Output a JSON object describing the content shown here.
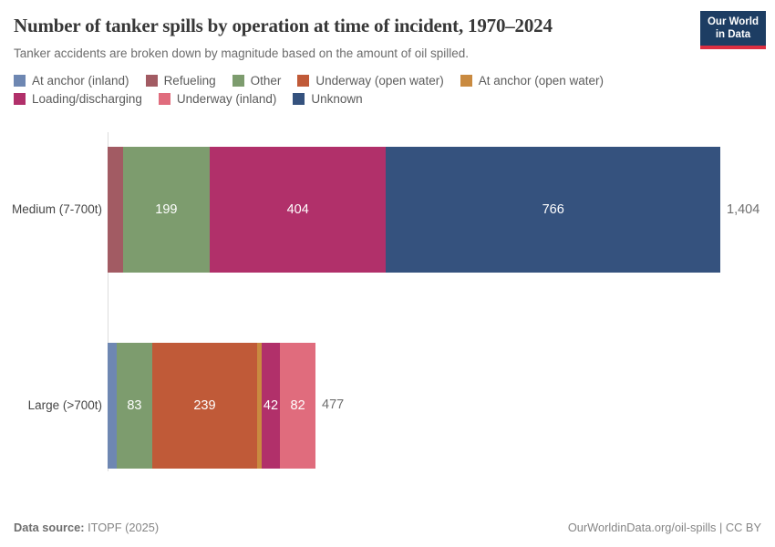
{
  "header": {
    "title": "Number of tanker spills by operation at time of incident, 1970–2024",
    "subtitle": "Tanker accidents are broken down by magnitude based on the amount of oil spilled."
  },
  "logo": {
    "line1": "Our World",
    "line2": "in Data",
    "bg_color": "#1d3d63",
    "accent_color": "#dc2e41"
  },
  "legend": {
    "rows": [
      [
        {
          "label": "At anchor (inland)",
          "color": "#6e87b2"
        },
        {
          "label": "Refueling",
          "color": "#a25b63"
        },
        {
          "label": "Other",
          "color": "#7d9c6e"
        },
        {
          "label": "Underway (open water)",
          "color": "#c05a38"
        },
        {
          "label": "At anchor (open water)",
          "color": "#c98a40"
        }
      ],
      [
        {
          "label": "Loading/discharging",
          "color": "#b1306a"
        },
        {
          "label": "Underway (inland)",
          "color": "#e06c7d"
        },
        {
          "label": "Unknown",
          "color": "#35527e"
        }
      ]
    ]
  },
  "chart_data": {
    "type": "bar",
    "orientation": "horizontal_stacked",
    "title": "Number of tanker spills by operation at time of incident, 1970–2024",
    "subtitle": "Tanker accidents are broken down by magnitude based on the amount of oil spilled.",
    "categories": [
      "Medium (7-700t)",
      "Large (>700t)"
    ],
    "series": [
      {
        "name": "At anchor (inland)",
        "color": "#6e87b2",
        "values": [
          0,
          20
        ]
      },
      {
        "name": "Refueling",
        "color": "#a25b63",
        "values": [
          35,
          0
        ]
      },
      {
        "name": "Other",
        "color": "#7d9c6e",
        "values": [
          199,
          83
        ]
      },
      {
        "name": "Underway (open water)",
        "color": "#c05a38",
        "values": [
          0,
          239
        ]
      },
      {
        "name": "At anchor (open water)",
        "color": "#c98a40",
        "values": [
          0,
          11
        ]
      },
      {
        "name": "Loading/discharging",
        "color": "#b1306a",
        "values": [
          404,
          42
        ]
      },
      {
        "name": "Underway (inland)",
        "color": "#e06c7d",
        "values": [
          0,
          82
        ]
      },
      {
        "name": "Unknown",
        "color": "#35527e",
        "values": [
          766,
          0
        ]
      }
    ],
    "totals": [
      1404,
      477
    ],
    "labeled_values": [
      199,
      404,
      766,
      83,
      239,
      42,
      82
    ],
    "xlim": [
      0,
      1404
    ],
    "grid": false,
    "legend_position": "top"
  },
  "bars": [
    {
      "label": "Medium (7-700t)",
      "total_label": "1,404",
      "segments": [
        {
          "name": "Refueling",
          "value": 35,
          "color": "#a25b63",
          "label": ""
        },
        {
          "name": "Other",
          "value": 199,
          "color": "#7d9c6e",
          "label": "199"
        },
        {
          "name": "Loading/discharging",
          "value": 404,
          "color": "#b1306a",
          "label": "404"
        },
        {
          "name": "Unknown",
          "value": 766,
          "color": "#35527e",
          "label": "766"
        }
      ]
    },
    {
      "label": "Large (>700t)",
      "total_label": "477",
      "segments": [
        {
          "name": "At anchor (inland)",
          "value": 20,
          "color": "#6e87b2",
          "label": ""
        },
        {
          "name": "Other",
          "value": 83,
          "color": "#7d9c6e",
          "label": "83"
        },
        {
          "name": "Underway (open water)",
          "value": 239,
          "color": "#c05a38",
          "label": "239"
        },
        {
          "name": "At anchor (open water)",
          "value": 11,
          "color": "#c98a40",
          "label": ""
        },
        {
          "name": "Loading/discharging",
          "value": 42,
          "color": "#b1306a",
          "label": "42"
        },
        {
          "name": "Underway (inland)",
          "value": 82,
          "color": "#e06c7d",
          "label": "82"
        }
      ]
    }
  ],
  "footer": {
    "source_label": "Data source:",
    "source_value": " ITOPF (2025)",
    "link": "OurWorldinData.org/oil-spills | CC BY"
  }
}
